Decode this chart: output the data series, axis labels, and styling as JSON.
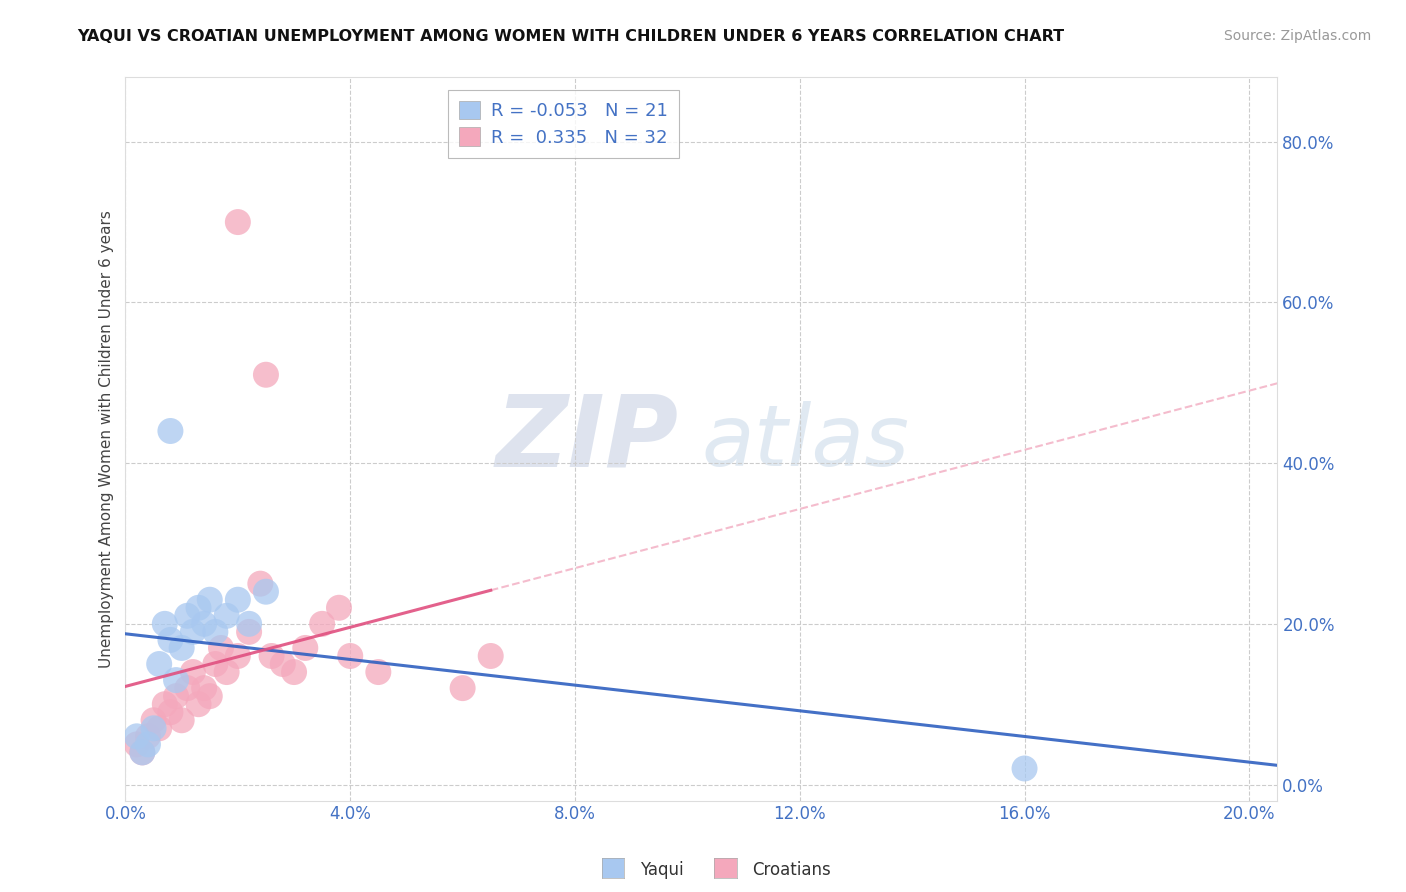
{
  "title": "YAQUI VS CROATIAN UNEMPLOYMENT AMONG WOMEN WITH CHILDREN UNDER 6 YEARS CORRELATION CHART",
  "source": "Source: ZipAtlas.com",
  "ylabel": "Unemployment Among Women with Children Under 6 years",
  "xlim": [
    0.0,
    0.205
  ],
  "ylim": [
    -0.02,
    0.88
  ],
  "xticks": [
    0.0,
    0.04,
    0.08,
    0.12,
    0.16,
    0.2
  ],
  "yticks": [
    0.0,
    0.2,
    0.4,
    0.6,
    0.8
  ],
  "xticklabels": [
    "0.0%",
    "4.0%",
    "8.0%",
    "12.0%",
    "16.0%",
    "20.0%"
  ],
  "yticklabels": [
    "0.0%",
    "20.0%",
    "40.0%",
    "60.0%",
    "80.0%"
  ],
  "yaqui_color": "#A8C8F0",
  "croatian_color": "#F4A8BC",
  "trend_yaqui_color": "#3060C0",
  "trend_croatian_color": "#E05080",
  "trend_yaqui_dashed_color": "#C0C8E8",
  "trend_croatian_dashed_color": "#F0A0B8",
  "legend_R_yaqui": "-0.053",
  "legend_N_yaqui": "21",
  "legend_R_croatian": "0.335",
  "legend_N_croatian": "32",
  "yaqui_x": [
    0.002,
    0.003,
    0.004,
    0.005,
    0.006,
    0.007,
    0.008,
    0.009,
    0.01,
    0.011,
    0.012,
    0.013,
    0.014,
    0.015,
    0.016,
    0.018,
    0.02,
    0.022,
    0.025,
    0.16,
    0.008
  ],
  "yaqui_y": [
    0.06,
    0.04,
    0.05,
    0.07,
    0.15,
    0.2,
    0.18,
    0.13,
    0.17,
    0.21,
    0.19,
    0.22,
    0.2,
    0.23,
    0.19,
    0.21,
    0.23,
    0.2,
    0.24,
    0.02,
    0.44
  ],
  "croatian_x": [
    0.002,
    0.003,
    0.004,
    0.005,
    0.006,
    0.007,
    0.008,
    0.009,
    0.01,
    0.011,
    0.012,
    0.013,
    0.014,
    0.015,
    0.016,
    0.017,
    0.018,
    0.02,
    0.022,
    0.024,
    0.026,
    0.028,
    0.03,
    0.032,
    0.035,
    0.038,
    0.04,
    0.045,
    0.06,
    0.065,
    0.02,
    0.025
  ],
  "croatian_y": [
    0.05,
    0.04,
    0.06,
    0.08,
    0.07,
    0.1,
    0.09,
    0.11,
    0.08,
    0.12,
    0.14,
    0.1,
    0.12,
    0.11,
    0.15,
    0.17,
    0.14,
    0.16,
    0.19,
    0.25,
    0.16,
    0.15,
    0.14,
    0.17,
    0.2,
    0.22,
    0.16,
    0.14,
    0.12,
    0.16,
    0.7,
    0.51
  ],
  "watermark_zip": "ZIP",
  "watermark_atlas": "atlas",
  "background_color": "#FFFFFF",
  "grid_color": "#CCCCCC"
}
